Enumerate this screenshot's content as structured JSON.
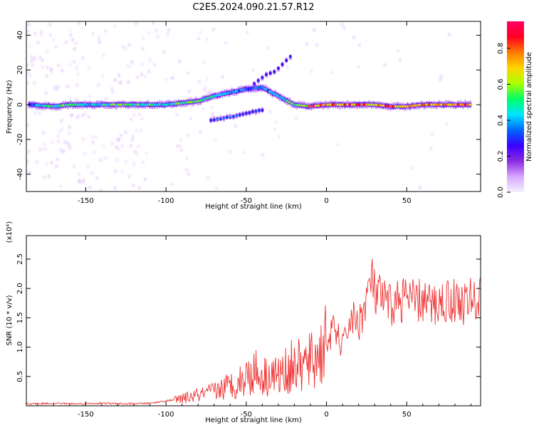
{
  "title": "C2E5.2024.090.21.57.R12",
  "colors": {
    "snr_line": "#ee3333",
    "colormap": [
      "#f2f2ff",
      "#d9a8ff",
      "#8b2be2",
      "#3a00ff",
      "#0066ff",
      "#00e5ff",
      "#00ff66",
      "#aaff00",
      "#ffd400",
      "#ff7a00",
      "#ff0022",
      "#ff0066"
    ]
  },
  "chart_data": [
    {
      "type": "heatmap",
      "xlabel": "Height of straight line (km)",
      "ylabel": "Frequency (Hz)",
      "xlim": [
        -187,
        96
      ],
      "ylim": [
        -50,
        48
      ],
      "xticks": [
        -150,
        -100,
        -50,
        0,
        50
      ],
      "xtick_labels": [
        "-150",
        "-100",
        "-50",
        "0",
        "50"
      ],
      "yticks": [
        40,
        20,
        0,
        -20,
        -40
      ],
      "ytick_labels": [
        "40",
        "20",
        "0",
        "-20",
        "-40"
      ],
      "main_band": [
        {
          "x": -185,
          "f": 0,
          "amp": 0.35
        },
        {
          "x": -170,
          "f": -1,
          "amp": 0.6
        },
        {
          "x": -160,
          "f": 0,
          "amp": 0.55
        },
        {
          "x": -145,
          "f": 0,
          "amp": 0.45
        },
        {
          "x": -130,
          "f": 0,
          "amp": 0.6
        },
        {
          "x": -115,
          "f": 0,
          "amp": 0.55
        },
        {
          "x": -100,
          "f": 0,
          "amp": 0.5
        },
        {
          "x": -90,
          "f": 1,
          "amp": 0.55
        },
        {
          "x": -80,
          "f": 2,
          "amp": 0.55
        },
        {
          "x": -70,
          "f": 5,
          "amp": 0.5
        },
        {
          "x": -60,
          "f": 7,
          "amp": 0.45
        },
        {
          "x": -50,
          "f": 9,
          "amp": 0.35
        },
        {
          "x": -40,
          "f": 10,
          "amp": 0.4
        },
        {
          "x": -30,
          "f": 5,
          "amp": 0.45
        },
        {
          "x": -20,
          "f": 0,
          "amp": 0.55
        },
        {
          "x": -10,
          "f": -1,
          "amp": 0.75
        },
        {
          "x": 0,
          "f": 0,
          "amp": 0.85
        },
        {
          "x": 10,
          "f": 0,
          "amp": 0.8
        },
        {
          "x": 20,
          "f": 0,
          "amp": 0.85
        },
        {
          "x": 30,
          "f": 0,
          "amp": 0.75
        },
        {
          "x": 40,
          "f": -1,
          "amp": 0.85
        },
        {
          "x": 50,
          "f": -1,
          "amp": 0.7
        },
        {
          "x": 60,
          "f": 0,
          "amp": 0.75
        },
        {
          "x": 70,
          "f": 0,
          "amp": 0.8
        },
        {
          "x": 80,
          "f": 0,
          "amp": 0.85
        },
        {
          "x": 90,
          "f": 0,
          "amp": 0.8
        }
      ],
      "lower_branch": [
        {
          "x": -72,
          "f": -9,
          "amp": 0.35
        },
        {
          "x": -60,
          "f": -7,
          "amp": 0.4
        },
        {
          "x": -50,
          "f": -5,
          "amp": 0.35
        },
        {
          "x": -40,
          "f": -3,
          "amp": 0.3
        }
      ],
      "upper_branch": [
        {
          "x": -45,
          "f": 12,
          "amp": 0.3
        },
        {
          "x": -38,
          "f": 17,
          "amp": 0.3
        },
        {
          "x": -32,
          "f": 19,
          "amp": 0.25
        },
        {
          "x": -22,
          "f": 28,
          "amp": 0.3
        }
      ]
    },
    {
      "type": "colorbar",
      "label": "Normalized spectral amplitude",
      "range": [
        0,
        0.95
      ],
      "ticks": [
        0.0,
        0.2,
        0.4,
        0.6,
        0.8
      ],
      "tick_labels": [
        "0.0",
        "0.2",
        "0.4",
        "0.6",
        "0.8"
      ]
    },
    {
      "type": "line",
      "xlabel": "Height of straight line (km)",
      "ylabel": "SNR (10 * v/v)",
      "scale_label": "(x10⁴)",
      "xlim": [
        -187,
        96
      ],
      "ylim": [
        0,
        2.9
      ],
      "xticks": [
        -150,
        -100,
        -50,
        0,
        50
      ],
      "xtick_labels": [
        "-150",
        "-100",
        "-50",
        "0",
        "50"
      ],
      "yticks": [
        0.5,
        1.0,
        1.5,
        2.0,
        2.5
      ],
      "ytick_labels": [
        "0.5",
        "1.0",
        "1.5",
        "2.0",
        "2.5"
      ],
      "series": [
        {
          "x": [
            -187,
            -170,
            -155,
            -140,
            -125,
            -110,
            -105,
            -100,
            -95,
            -90,
            -85,
            -80,
            -75,
            -70,
            -65,
            -60,
            -55,
            -50,
            -45,
            -40,
            -35,
            -30,
            -25,
            -20,
            -15,
            -10,
            -5,
            0,
            5,
            10,
            15,
            20,
            25,
            28,
            30,
            35,
            40,
            45,
            50,
            55,
            60,
            65,
            70,
            75,
            80,
            85,
            90,
            96
          ],
          "y": [
            0.03,
            0.04,
            0.03,
            0.04,
            0.03,
            0.04,
            0.06,
            0.08,
            0.1,
            0.12,
            0.15,
            0.18,
            0.2,
            0.25,
            0.3,
            0.35,
            0.4,
            0.5,
            0.6,
            0.5,
            0.55,
            0.5,
            0.6,
            0.7,
            0.65,
            0.75,
            0.85,
            1.1,
            1.3,
            1.0,
            1.5,
            1.4,
            1.8,
            2.2,
            1.9,
            1.8,
            1.7,
            1.8,
            1.85,
            1.75,
            1.8,
            1.7,
            1.75,
            1.8,
            1.8,
            1.75,
            1.8,
            1.8
          ]
        }
      ]
    }
  ]
}
